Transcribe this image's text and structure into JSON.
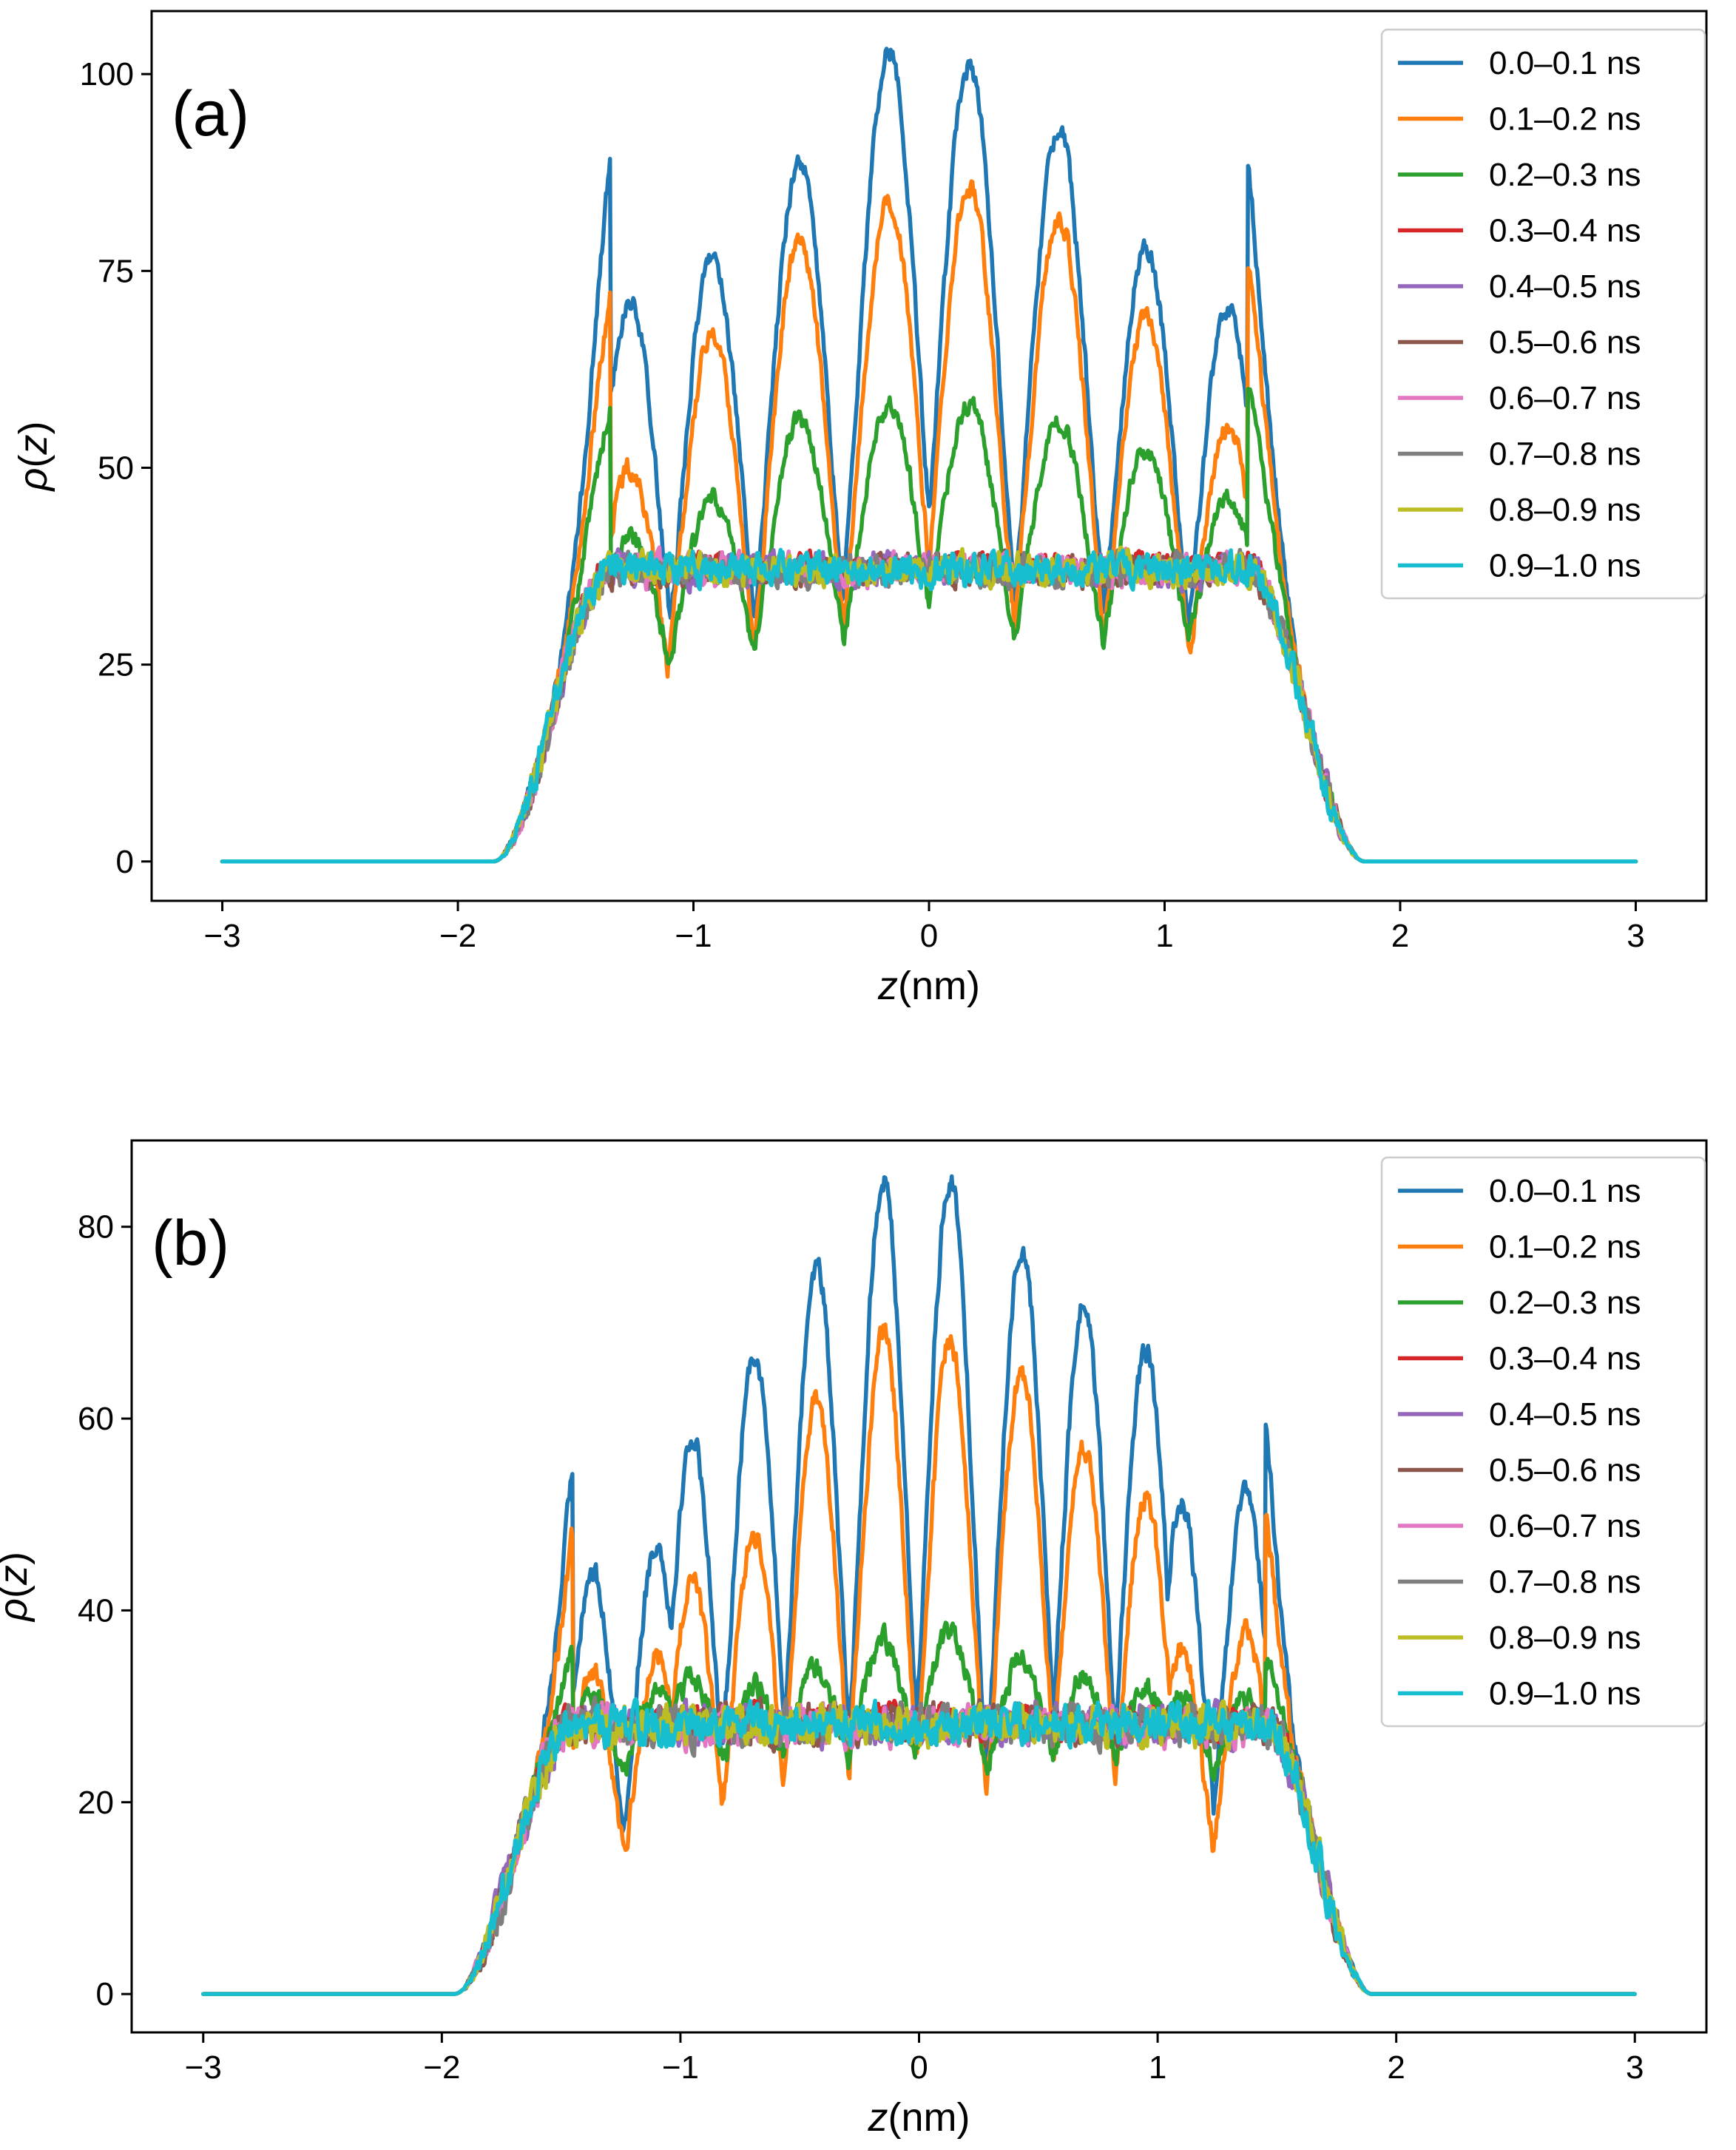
{
  "chart_data": [
    {
      "type": "line",
      "panel": "(a)",
      "xlabel_var": "z",
      "xlabel_unit": "(nm)",
      "ylabel_var": "ρ",
      "ylabel_arg": "(z)",
      "xlim": [
        -3.3,
        3.3
      ],
      "ylim": [
        -5,
        108
      ],
      "xticks": [
        -3,
        -2,
        -1,
        0,
        1,
        2,
        3
      ],
      "xtick_labels": [
        "−3",
        "−2",
        "−1",
        "0",
        "1",
        "2",
        "3"
      ],
      "yticks": [
        0,
        25,
        50,
        75,
        100
      ],
      "ytick_labels": [
        "0",
        "25",
        "50",
        "75",
        "100"
      ],
      "legend_position": "top-right",
      "profile": {
        "x_range": [
          -3,
          3
        ],
        "edge_start": -1.85,
        "edge_end": 1.85,
        "core_start": -1.35,
        "core_end": 1.35,
        "plateau": 37,
        "layer_centers": [
          -1.27,
          -0.92,
          -0.55,
          -0.17,
          0.17,
          0.55,
          0.92,
          1.27
        ],
        "layer_width": 0.13
      },
      "series": [
        {
          "name": "0.0–0.1 ns",
          "color": "#1f77b4",
          "peak_heights": [
            71,
            77,
            89,
            103,
            101,
            93,
            78,
            70
          ],
          "minimum": 0
        },
        {
          "name": "0.1–0.2 ns",
          "color": "#ff7f0e",
          "peak_heights": [
            50,
            67,
            79,
            84,
            86,
            82,
            69,
            55
          ],
          "minimum": 2
        },
        {
          "name": "0.2–0.3 ns",
          "color": "#2ca02c",
          "peak_heights": [
            41,
            46,
            56,
            58,
            58,
            56,
            52,
            46
          ],
          "minimum": 13
        },
        {
          "name": "0.3–0.4 ns",
          "color": "#d62728",
          "peak_heights": [
            38,
            38,
            38,
            38,
            38,
            38,
            38,
            38
          ],
          "minimum": 36
        },
        {
          "name": "0.4–0.5 ns",
          "color": "#9467bd",
          "peak_heights": [
            37,
            37,
            37,
            37,
            37,
            37,
            37,
            37
          ],
          "minimum": 37
        },
        {
          "name": "0.5–0.6 ns",
          "color": "#8c564b",
          "peak_heights": [
            37,
            37,
            37,
            37,
            37,
            37,
            37,
            37
          ],
          "minimum": 37
        },
        {
          "name": "0.6–0.7 ns",
          "color": "#e377c2",
          "peak_heights": [
            37,
            37,
            37,
            37,
            37,
            37,
            37,
            37
          ],
          "minimum": 37
        },
        {
          "name": "0.7–0.8 ns",
          "color": "#7f7f7f",
          "peak_heights": [
            37,
            37,
            37,
            37,
            37,
            37,
            37,
            37
          ],
          "minimum": 37
        },
        {
          "name": "0.8–0.9 ns",
          "color": "#bcbd22",
          "peak_heights": [
            37,
            37,
            37,
            37,
            37,
            37,
            37,
            37
          ],
          "minimum": 37
        },
        {
          "name": "0.9–1.0 ns",
          "color": "#17becf",
          "peak_heights": [
            37,
            37,
            37,
            37,
            37,
            37,
            37,
            37
          ],
          "minimum": 37
        }
      ]
    },
    {
      "type": "line",
      "panel": "(b)",
      "xlabel_var": "z",
      "xlabel_unit": "(nm)",
      "ylabel_var": "ρ",
      "ylabel_arg": "(z)",
      "xlim": [
        -3.3,
        3.3
      ],
      "ylim": [
        -4,
        89
      ],
      "xticks": [
        -3,
        -2,
        -1,
        0,
        1,
        2,
        3
      ],
      "xtick_labels": [
        "−3",
        "−2",
        "−1",
        "0",
        "1",
        "2",
        "3"
      ],
      "yticks": [
        0,
        20,
        40,
        60,
        80
      ],
      "ytick_labels": [
        "0",
        "20",
        "40",
        "60",
        "80"
      ],
      "legend_position": "top-right",
      "profile": {
        "x_range": [
          -3,
          3
        ],
        "edge_start": -1.95,
        "edge_end": 1.9,
        "core_start": -1.45,
        "core_end": 1.45,
        "plateau": 28,
        "layer_centers": [
          -1.37,
          -1.1,
          -0.95,
          -0.69,
          -0.43,
          -0.15,
          0.13,
          0.43,
          0.69,
          0.95,
          1.1,
          1.37
        ],
        "layer_width": 0.095
      },
      "series": [
        {
          "name": "0.0–0.1 ns",
          "color": "#1f77b4",
          "peak_heights": [
            44,
            47,
            58,
            67,
            76,
            85,
            85,
            78,
            72,
            67,
            51,
            52
          ],
          "minimum": 0
        },
        {
          "name": "0.1–0.2 ns",
          "color": "#ff7f0e",
          "peak_heights": [
            34,
            35,
            43,
            48,
            62,
            69,
            68,
            65,
            57,
            52,
            36,
            38
          ],
          "minimum": 2
        },
        {
          "name": "0.2–0.3 ns",
          "color": "#2ca02c",
          "peak_heights": [
            31,
            31,
            33,
            32,
            34,
            37,
            38,
            35,
            33,
            32,
            31,
            31
          ],
          "minimum": 19
        },
        {
          "name": "0.3–0.4 ns",
          "color": "#d62728",
          "peak_heights": [
            29,
            29,
            29,
            29,
            29,
            29,
            29,
            29,
            29,
            29,
            29,
            29
          ],
          "minimum": 27
        },
        {
          "name": "0.4–0.5 ns",
          "color": "#9467bd",
          "peak_heights": [
            28,
            28,
            28,
            28,
            28,
            28,
            28,
            28,
            28,
            28,
            28,
            28
          ],
          "minimum": 28
        },
        {
          "name": "0.5–0.6 ns",
          "color": "#8c564b",
          "peak_heights": [
            28,
            28,
            28,
            28,
            28,
            28,
            28,
            28,
            28,
            28,
            28,
            28
          ],
          "minimum": 28
        },
        {
          "name": "0.6–0.7 ns",
          "color": "#e377c2",
          "peak_heights": [
            28,
            28,
            28,
            28,
            28,
            28,
            28,
            28,
            28,
            28,
            28,
            28
          ],
          "minimum": 28
        },
        {
          "name": "0.7–0.8 ns",
          "color": "#7f7f7f",
          "peak_heights": [
            28,
            28,
            28,
            28,
            28,
            28,
            28,
            28,
            28,
            28,
            28,
            28
          ],
          "minimum": 28
        },
        {
          "name": "0.8–0.9 ns",
          "color": "#bcbd22",
          "peak_heights": [
            28,
            28,
            28,
            28,
            28,
            28,
            28,
            28,
            28,
            28,
            28,
            28
          ],
          "minimum": 28
        },
        {
          "name": "0.9–1.0 ns",
          "color": "#17becf",
          "peak_heights": [
            28,
            28,
            28,
            28,
            28,
            28,
            28,
            28,
            28,
            28,
            28,
            28
          ],
          "minimum": 28
        }
      ]
    }
  ]
}
